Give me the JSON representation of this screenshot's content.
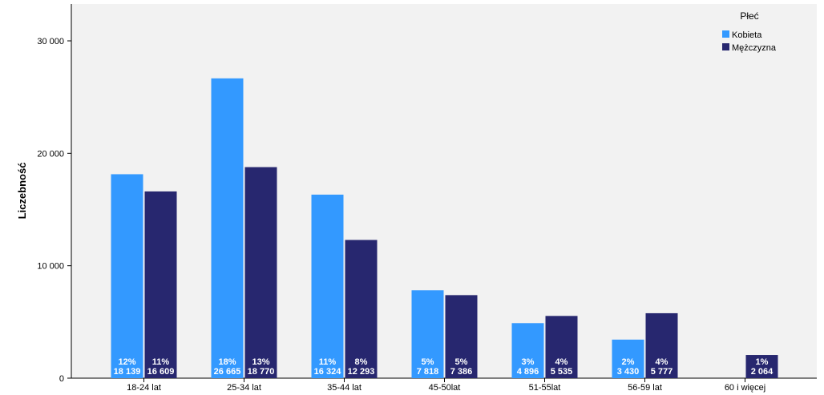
{
  "chart_data": {
    "type": "bar",
    "ylabel": "Liczebność",
    "xlabel": "",
    "ylim": [
      0,
      33000
    ],
    "yticks": [
      0,
      10000,
      20000,
      30000
    ],
    "ytick_labels": [
      "0",
      "10 000",
      "20 000",
      "30 000"
    ],
    "categories": [
      "18-24 lat",
      "25-34 lat",
      "35-44 lat",
      "45-50lat",
      "51-55lat",
      "56-59 lat",
      "60 i więcej"
    ],
    "legend_title": "Płeć",
    "legend_position": "top-right",
    "grid": false,
    "series": [
      {
        "name": "Kobieta",
        "color": "#3399ff",
        "values": [
          18139,
          26665,
          16324,
          7818,
          4896,
          3430,
          null
        ],
        "pct_labels": [
          "12%",
          "18%",
          "11%",
          "5%",
          "3%",
          "2%",
          ""
        ],
        "count_labels": [
          "18 139",
          "26 665",
          "16 324",
          "7 818",
          "4 896",
          "3 430",
          ""
        ]
      },
      {
        "name": "Mężczyzna",
        "color": "#27276f",
        "values": [
          16609,
          18770,
          12293,
          7386,
          5535,
          5777,
          2064
        ],
        "pct_labels": [
          "11%",
          "13%",
          "8%",
          "5%",
          "4%",
          "4%",
          "1%"
        ],
        "count_labels": [
          "16 609",
          "18 770",
          "12 293",
          "7 386",
          "5 535",
          "5 777",
          "2 064"
        ]
      }
    ]
  },
  "colors": {
    "plot_background": "#f2f2f2",
    "axis": "#000000"
  }
}
